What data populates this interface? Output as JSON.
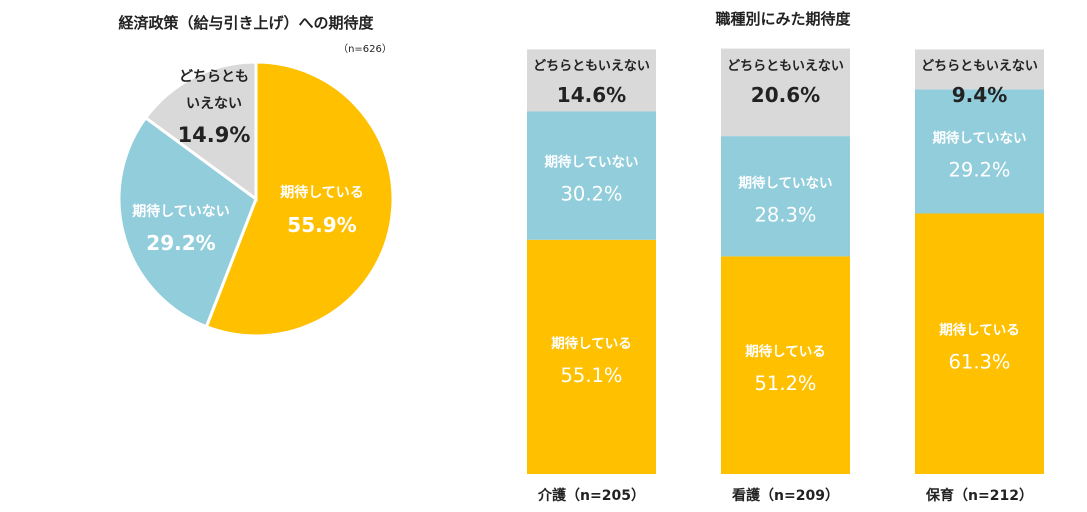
{
  "chart_data": [
    {
      "type": "pie",
      "title": "経済政策（給与引き上げ）への期待度",
      "note": "（n=626）",
      "slices": [
        {
          "name": "期待している",
          "value": 55.9,
          "value_label": "55.9%",
          "color": "#FFC000"
        },
        {
          "name": "期待していない",
          "value": 29.2,
          "value_label": "29.2%",
          "color": "#92CDDC"
        },
        {
          "name": "どちらとも|いえない",
          "value": 14.9,
          "value_label": "14.9%",
          "color": "#D9D9D9"
        }
      ]
    },
    {
      "type": "bar",
      "stacked": true,
      "title": "職種別にみた期待度",
      "ylim": [
        0,
        100
      ],
      "categories": [
        "介護（n=205）",
        "看護（n=209）",
        "保育（n=212）"
      ],
      "series": [
        {
          "name": "期待している",
          "color": "#FFC000",
          "values": [
            55.1,
            51.2,
            61.3
          ],
          "value_labels": [
            "55.1%",
            "51.2%",
            "61.3%"
          ]
        },
        {
          "name": "期待していない",
          "color": "#92CDDC",
          "values": [
            30.2,
            28.3,
            29.2
          ],
          "value_labels": [
            "30.2%",
            "28.3%",
            "29.2%"
          ]
        },
        {
          "name": "どちらともいえない",
          "color": "#D9D9D9",
          "values": [
            14.6,
            20.6,
            9.4
          ],
          "value_labels": [
            "14.6%",
            "20.6%",
            "9.4%"
          ]
        }
      ]
    }
  ]
}
